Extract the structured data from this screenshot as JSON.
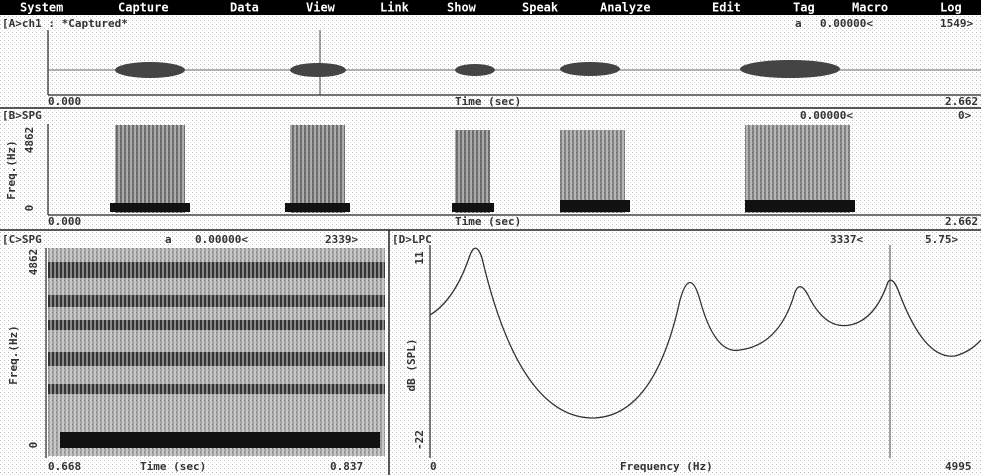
{
  "menu": [
    "System",
    "Capture",
    "Data",
    "View",
    "Link",
    "Show",
    "Speak",
    "Analyze",
    "Edit",
    "Tag",
    "Macro",
    "Log"
  ],
  "panels": [
    {
      "header": "[A>ch1 : *Captured*",
      "marker": "a",
      "position": "0.00000<",
      "count": "1549>",
      "x_start": "0.000",
      "x_label": "Time (sec)",
      "x_end": "2.662"
    },
    {
      "header": "[B>SPG",
      "position": "0.00000<",
      "count": "0>",
      "y_label": "Freq.(Hz)",
      "y_top": "4862",
      "y_bottom": "0",
      "x_start": "0.000",
      "x_label": "Time (sec)",
      "x_end": "2.662"
    },
    {
      "header": "[C>SPG",
      "marker": "a",
      "position": "0.00000<",
      "count": "2339>",
      "y_label": "Freq.(Hz)",
      "y_top": "4862",
      "y_bottom": "0",
      "x_start": "0.668",
      "x_label": "Time (sec)",
      "x_end": "0.837"
    },
    {
      "header": "[D>LPC",
      "position": "3337<",
      "count": "5.75>",
      "y_label": "dB (SPL)",
      "y_top": "11",
      "y_bottom": "-22",
      "x_start": "0",
      "x_label": "Frequency (Hz)",
      "x_end": "4995"
    }
  ]
}
